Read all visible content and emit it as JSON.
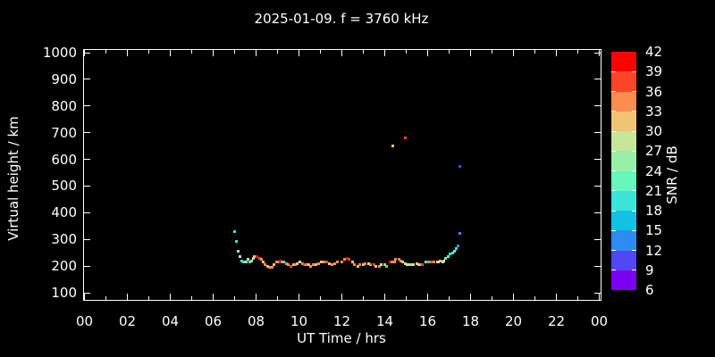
{
  "title": "2025-01-09. f = 3760 kHz",
  "background_color": "#000000",
  "foreground_color": "#ffffff",
  "axes": {
    "xlabel": "UT Time / hrs",
    "ylabel": "Virtual height / km",
    "x_tick_labels": [
      "00",
      "02",
      "04",
      "06",
      "08",
      "10",
      "12",
      "14",
      "16",
      "18",
      "20",
      "22",
      "00"
    ],
    "x_major_hours": [
      0,
      2,
      4,
      6,
      8,
      10,
      12,
      14,
      16,
      18,
      20,
      22,
      24
    ],
    "x_minor_hours": [
      1,
      3,
      5,
      7,
      9,
      11,
      13,
      15,
      17,
      19,
      21,
      23
    ],
    "y_tick_values": [
      100,
      200,
      300,
      400,
      500,
      600,
      700,
      800,
      900,
      1000
    ]
  },
  "colorbar": {
    "label": "SNR / dB",
    "tick_labels": [
      "42",
      "39",
      "36",
      "33",
      "30",
      "27",
      "24",
      "21",
      "18",
      "15",
      "12",
      "9",
      "6"
    ],
    "min": 6,
    "max": 42,
    "step": 3,
    "segment_colors_top_to_bottom": [
      "#F90500",
      "#FC4526",
      "#FB8D4E",
      "#EFC473",
      "#C6E69A",
      "#96F0A8",
      "#66F7BC",
      "#3BE3D9",
      "#12C2E5",
      "#2B8CF2",
      "#5246F5",
      "#7C00F3"
    ]
  },
  "chart_data": {
    "type": "scatter",
    "title": "2025-01-09. f = 3760 kHz",
    "xlabel": "UT Time / hrs",
    "ylabel": "Virtual height / km",
    "xlim": [
      0,
      24
    ],
    "ylim": [
      73,
      1010
    ],
    "grid": false,
    "colorbar_label": "SNR / dB",
    "point_format": [
      "ut_hour",
      "virtual_height_km",
      "snr_db"
    ],
    "points": [
      [
        6.98,
        328,
        19
      ],
      [
        7.08,
        291,
        19
      ],
      [
        7.18,
        254,
        26
      ],
      [
        7.26,
        234,
        28
      ],
      [
        7.33,
        220,
        19
      ],
      [
        7.4,
        217,
        19
      ],
      [
        7.48,
        214,
        22
      ],
      [
        7.56,
        217,
        25
      ],
      [
        7.64,
        224,
        28
      ],
      [
        7.71,
        217,
        19
      ],
      [
        7.78,
        220,
        25
      ],
      [
        7.86,
        230,
        28
      ],
      [
        7.93,
        234,
        31
      ],
      [
        8.06,
        234,
        40
      ],
      [
        8.16,
        230,
        37
      ],
      [
        8.26,
        224,
        34
      ],
      [
        8.33,
        217,
        31
      ],
      [
        8.43,
        207,
        34
      ],
      [
        8.53,
        200,
        31
      ],
      [
        8.63,
        197,
        34
      ],
      [
        8.73,
        197,
        34
      ],
      [
        8.85,
        204,
        31
      ],
      [
        8.95,
        214,
        34
      ],
      [
        9.03,
        217,
        34
      ],
      [
        9.11,
        220,
        40
      ],
      [
        9.2,
        217,
        34
      ],
      [
        9.31,
        217,
        19
      ],
      [
        9.41,
        210,
        34
      ],
      [
        9.51,
        204,
        34
      ],
      [
        9.61,
        200,
        37
      ],
      [
        9.73,
        204,
        31
      ],
      [
        9.83,
        207,
        34
      ],
      [
        9.93,
        210,
        31
      ],
      [
        10.03,
        214,
        28
      ],
      [
        10.15,
        210,
        34
      ],
      [
        10.25,
        207,
        37
      ],
      [
        10.35,
        207,
        34
      ],
      [
        10.45,
        204,
        31
      ],
      [
        10.56,
        200,
        34
      ],
      [
        10.68,
        204,
        34
      ],
      [
        10.81,
        207,
        31
      ],
      [
        10.93,
        210,
        34
      ],
      [
        11.06,
        214,
        31
      ],
      [
        11.18,
        214,
        34
      ],
      [
        11.31,
        214,
        37
      ],
      [
        11.43,
        210,
        31
      ],
      [
        11.56,
        207,
        34
      ],
      [
        11.68,
        210,
        34
      ],
      [
        11.81,
        214,
        34
      ],
      [
        11.98,
        217,
        34
      ],
      [
        12.13,
        224,
        34
      ],
      [
        12.23,
        230,
        40
      ],
      [
        12.35,
        224,
        37
      ],
      [
        12.48,
        214,
        31
      ],
      [
        12.6,
        204,
        34
      ],
      [
        12.73,
        200,
        31
      ],
      [
        12.85,
        204,
        34
      ],
      [
        12.98,
        207,
        31
      ],
      [
        13.1,
        210,
        34
      ],
      [
        13.23,
        210,
        28
      ],
      [
        13.35,
        207,
        34
      ],
      [
        13.48,
        204,
        37
      ],
      [
        13.6,
        200,
        31
      ],
      [
        13.73,
        200,
        34
      ],
      [
        13.85,
        204,
        28
      ],
      [
        13.98,
        204,
        31
      ],
      [
        14.1,
        200,
        19
      ],
      [
        14.23,
        214,
        40
      ],
      [
        14.35,
        214,
        34
      ],
      [
        14.44,
        217,
        34
      ],
      [
        14.52,
        224,
        34
      ],
      [
        14.65,
        227,
        34
      ],
      [
        14.77,
        220,
        34
      ],
      [
        14.85,
        214,
        31
      ],
      [
        14.94,
        210,
        28
      ],
      [
        15.06,
        207,
        28
      ],
      [
        15.17,
        204,
        25
      ],
      [
        15.27,
        204,
        31
      ],
      [
        15.35,
        207,
        28
      ],
      [
        15.48,
        210,
        31
      ],
      [
        15.6,
        207,
        25
      ],
      [
        15.69,
        204,
        34
      ],
      [
        15.77,
        207,
        37
      ],
      [
        15.9,
        214,
        25
      ],
      [
        16.02,
        214,
        16
      ],
      [
        16.1,
        214,
        34
      ],
      [
        16.19,
        214,
        37
      ],
      [
        16.31,
        214,
        34
      ],
      [
        16.44,
        214,
        28
      ],
      [
        16.52,
        217,
        28
      ],
      [
        16.6,
        220,
        31
      ],
      [
        16.69,
        217,
        28
      ],
      [
        16.77,
        220,
        28
      ],
      [
        16.85,
        230,
        22
      ],
      [
        16.94,
        237,
        22
      ],
      [
        17.06,
        247,
        19
      ],
      [
        17.15,
        250,
        19
      ],
      [
        17.27,
        257,
        22
      ],
      [
        17.35,
        267,
        19
      ],
      [
        17.42,
        277,
        13
      ],
      [
        17.48,
        324,
        13
      ],
      [
        14.38,
        649,
        32
      ],
      [
        14.96,
        682,
        37
      ],
      [
        17.52,
        572,
        10
      ]
    ]
  }
}
